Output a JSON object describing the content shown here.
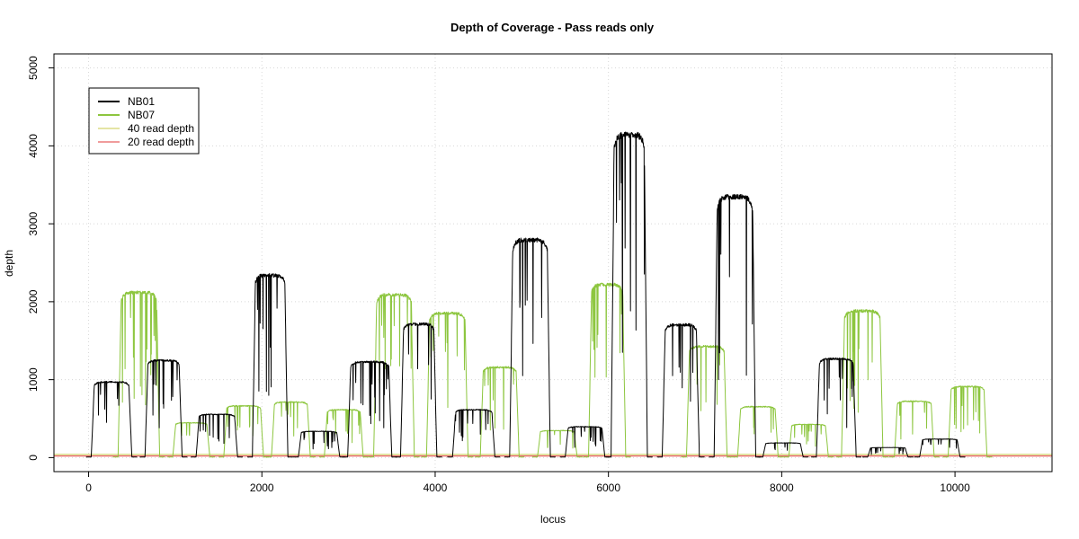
{
  "chart_data": {
    "type": "line",
    "title": "Depth of Coverage - Pass reads only",
    "xlabel": "locus",
    "ylabel": "depth",
    "xlim": [
      -400,
      11120
    ],
    "ylim": [
      -180,
      5180
    ],
    "xticks": [
      0,
      2000,
      4000,
      6000,
      8000,
      10000
    ],
    "yticks": [
      0,
      1000,
      2000,
      3000,
      4000,
      5000
    ],
    "grid": true,
    "legend_position": "top-left",
    "series": [
      {
        "name": "NB01",
        "color": "#000000",
        "segments": [
          {
            "start": 30,
            "end": 500,
            "depth": 980
          },
          {
            "start": 650,
            "end": 1080,
            "depth": 1260
          },
          {
            "start": 1240,
            "end": 1720,
            "depth": 560
          },
          {
            "start": 1890,
            "end": 2300,
            "depth": 2360
          },
          {
            "start": 2420,
            "end": 2900,
            "depth": 340
          },
          {
            "start": 2990,
            "end": 3500,
            "depth": 1240
          },
          {
            "start": 3600,
            "end": 4020,
            "depth": 1730
          },
          {
            "start": 4200,
            "end": 4690,
            "depth": 620
          },
          {
            "start": 4860,
            "end": 5330,
            "depth": 2820
          },
          {
            "start": 5500,
            "end": 5960,
            "depth": 400
          },
          {
            "start": 6030,
            "end": 6450,
            "depth": 4180
          },
          {
            "start": 6620,
            "end": 7050,
            "depth": 1720
          },
          {
            "start": 7220,
            "end": 7700,
            "depth": 3380
          },
          {
            "start": 7780,
            "end": 8250,
            "depth": 190
          },
          {
            "start": 8400,
            "end": 8860,
            "depth": 1280
          },
          {
            "start": 8990,
            "end": 9460,
            "depth": 130
          },
          {
            "start": 9590,
            "end": 10060,
            "depth": 240
          }
        ]
      },
      {
        "name": "NB07",
        "color": "#8dc63f",
        "segments": [
          {
            "start": 340,
            "end": 820,
            "depth": 2140
          },
          {
            "start": 970,
            "end": 1400,
            "depth": 450
          },
          {
            "start": 1560,
            "end": 2020,
            "depth": 670
          },
          {
            "start": 2110,
            "end": 2560,
            "depth": 720
          },
          {
            "start": 2720,
            "end": 3170,
            "depth": 620
          },
          {
            "start": 3290,
            "end": 3760,
            "depth": 2110
          },
          {
            "start": 3900,
            "end": 4380,
            "depth": 1870
          },
          {
            "start": 4520,
            "end": 4970,
            "depth": 1170
          },
          {
            "start": 5180,
            "end": 5640,
            "depth": 350
          },
          {
            "start": 5770,
            "end": 6200,
            "depth": 2240
          },
          {
            "start": 6900,
            "end": 7370,
            "depth": 1440
          },
          {
            "start": 7490,
            "end": 7960,
            "depth": 660
          },
          {
            "start": 8080,
            "end": 8540,
            "depth": 430
          },
          {
            "start": 8690,
            "end": 9170,
            "depth": 1900
          },
          {
            "start": 9300,
            "end": 9760,
            "depth": 730
          },
          {
            "start": 9920,
            "end": 10370,
            "depth": 920
          }
        ]
      }
    ],
    "reference_lines": [
      {
        "name": "40 read depth",
        "value": 40,
        "color": "#c8c84a"
      },
      {
        "name": "20 read depth",
        "value": 20,
        "color": "#e03a3a"
      }
    ]
  }
}
